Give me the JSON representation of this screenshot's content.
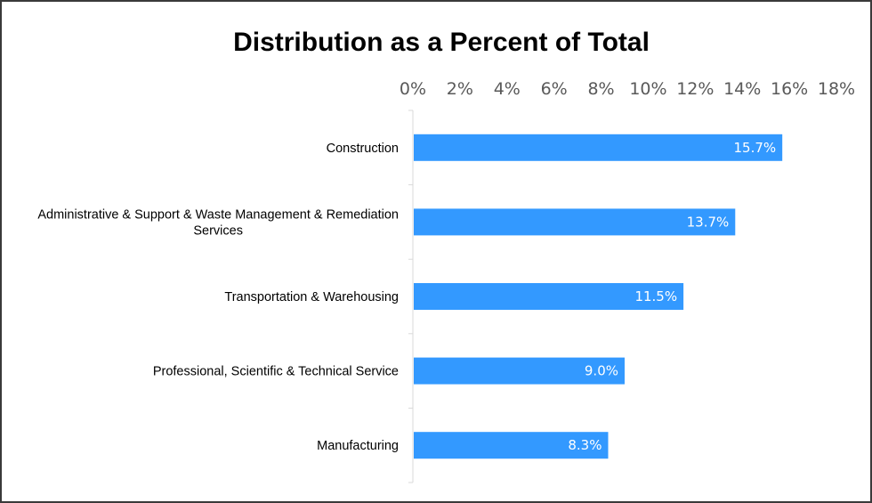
{
  "chart_data": {
    "type": "bar",
    "orientation": "horizontal",
    "title": "Distribution as a Percent of Total",
    "categories": [
      [
        "Construction"
      ],
      [
        "Administrative & Support & Waste Management & Remediation",
        "Services"
      ],
      [
        "Transportation & Warehousing"
      ],
      [
        "Professional, Scientific & Technical Service"
      ],
      [
        "Manufacturing"
      ]
    ],
    "values": [
      15.7,
      13.7,
      11.5,
      9.0,
      8.3
    ],
    "data_labels": [
      "15.7%",
      "13.7%",
      "11.5%",
      "9.0%",
      "8.3%"
    ],
    "x_ticks": [
      "0%",
      "2%",
      "4%",
      "6%",
      "8%",
      "10%",
      "12%",
      "14%",
      "16%",
      "18%"
    ],
    "xlim": [
      0,
      18
    ],
    "x_axis_position": "top",
    "grid": false,
    "legend": "none",
    "bar_color": "#3399ff"
  }
}
